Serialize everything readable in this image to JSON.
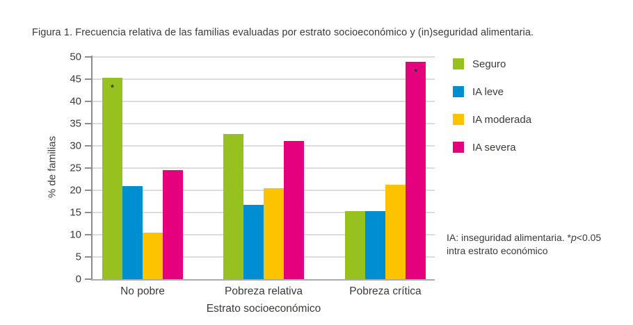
{
  "title": "Figura 1. Frecuencia relativa de las familias evaluadas por estrato socioeconómico y (in)seguridad alimentaria.",
  "chart_data": {
    "type": "bar",
    "title": "Figura 1. Frecuencia relativa de las familias evaluadas por estrato socioeconómico y (in)seguridad alimentaria.",
    "categories": [
      "No pobre",
      "Pobreza relativa",
      "Pobreza crítica"
    ],
    "series": [
      {
        "name": "Seguro",
        "color": "#96C11E",
        "values": [
          45.3,
          32.7,
          15.3
        ]
      },
      {
        "name": "IA leve",
        "color": "#008ED2",
        "values": [
          21.0,
          16.7,
          15.3
        ]
      },
      {
        "name": "IA moderada",
        "color": "#FDC300",
        "values": [
          10.5,
          20.5,
          21.3
        ]
      },
      {
        "name": "IA severa",
        "color": "#E5007E",
        "values": [
          24.5,
          31.1,
          48.9
        ]
      }
    ],
    "annotations": [
      {
        "category_index": 0,
        "series_index": 0,
        "label": "*"
      },
      {
        "category_index": 2,
        "series_index": 3,
        "label": "*"
      }
    ],
    "xlabel": "Estrato socioeconómico",
    "ylabel": "% de familias",
    "ylim": [
      0,
      50
    ],
    "yticks": [
      0,
      5,
      10,
      15,
      20,
      25,
      30,
      35,
      40,
      45,
      50
    ],
    "grid": true,
    "legend_position": "right"
  },
  "footnote": {
    "line1_pre": "IA: inseguridad alimentaria. *",
    "line1_italic": "p",
    "line1_post": "<0.05",
    "line2": "intra estrato económico"
  },
  "colors": {
    "gridline": "#DBDBDB",
    "axis": "#8C8C8C",
    "text": "#3A3A39"
  }
}
